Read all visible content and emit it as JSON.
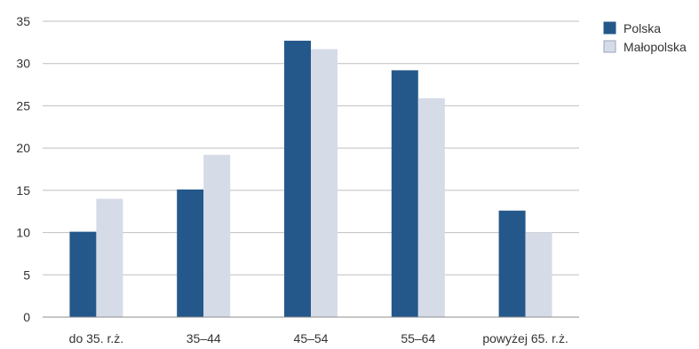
{
  "chart_data": {
    "type": "bar",
    "title": "",
    "xlabel": "",
    "ylabel": "",
    "categories": [
      "do 35. r.ż.",
      "35–44",
      "45–54",
      "55–64",
      "powyżej 65. r.ż."
    ],
    "series": [
      {
        "name": "Polska",
        "color": "#24588a",
        "values": [
          10.1,
          15.1,
          32.7,
          29.2,
          12.6
        ]
      },
      {
        "name": "Małopolska",
        "color": "#d6dbe8",
        "values": [
          14.0,
          19.2,
          31.7,
          25.9,
          10.0
        ]
      }
    ],
    "ylim": [
      0,
      35
    ],
    "yticks": [
      0,
      5,
      10,
      15,
      20,
      25,
      30,
      35
    ],
    "grid": true,
    "legend_position": "top-right"
  }
}
